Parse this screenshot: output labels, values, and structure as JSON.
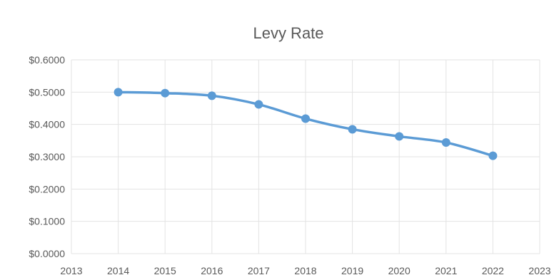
{
  "chart_data": {
    "type": "line",
    "title": "Levy Rate",
    "xlabel": "",
    "ylabel": "",
    "x_ticks": [
      "2013",
      "2014",
      "2015",
      "2016",
      "2017",
      "2018",
      "2019",
      "2020",
      "2021",
      "2022",
      "2023"
    ],
    "y_ticks": [
      "$0.0000",
      "$0.1000",
      "$0.2000",
      "$0.3000",
      "$0.4000",
      "$0.5000",
      "$0.6000"
    ],
    "xlim": [
      2013,
      2023
    ],
    "ylim": [
      0,
      0.6
    ],
    "grid": true,
    "legend": "none",
    "series": [
      {
        "color": "#5b9bd5",
        "x": [
          2014,
          2015,
          2016,
          2017,
          2018,
          2019,
          2020,
          2021,
          2022
        ],
        "values": [
          0.5,
          0.497,
          0.489,
          0.462,
          0.418,
          0.385,
          0.363,
          0.344,
          0.303
        ]
      }
    ]
  }
}
